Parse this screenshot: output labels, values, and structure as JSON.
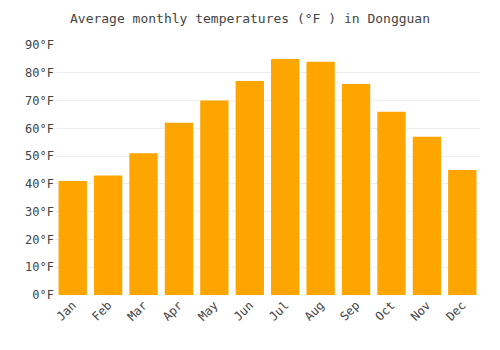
{
  "chart_data": {
    "type": "bar",
    "title": "Average monthly temperatures (°F ) in Dongguan",
    "categories": [
      "Jan",
      "Feb",
      "Mar",
      "Apr",
      "May",
      "Jun",
      "Jul",
      "Aug",
      "Sep",
      "Oct",
      "Nov",
      "Dec"
    ],
    "values": [
      41,
      43,
      51,
      62,
      70,
      77,
      85,
      84,
      76,
      66,
      57,
      45
    ],
    "color": "#FFA500",
    "ylim": [
      0,
      90
    ],
    "yticks": [
      {
        "value": 0,
        "label": "0°F"
      },
      {
        "value": 10,
        "label": "10°F"
      },
      {
        "value": 20,
        "label": "20°F"
      },
      {
        "value": 30,
        "label": "30°F"
      },
      {
        "value": 40,
        "label": "40°F"
      },
      {
        "value": 50,
        "label": "50°F"
      },
      {
        "value": 60,
        "label": "60°F"
      },
      {
        "value": 70,
        "label": "70°F"
      },
      {
        "value": 80,
        "label": "80°F"
      },
      {
        "value": 90,
        "label": "90°F"
      }
    ],
    "grid": true
  }
}
